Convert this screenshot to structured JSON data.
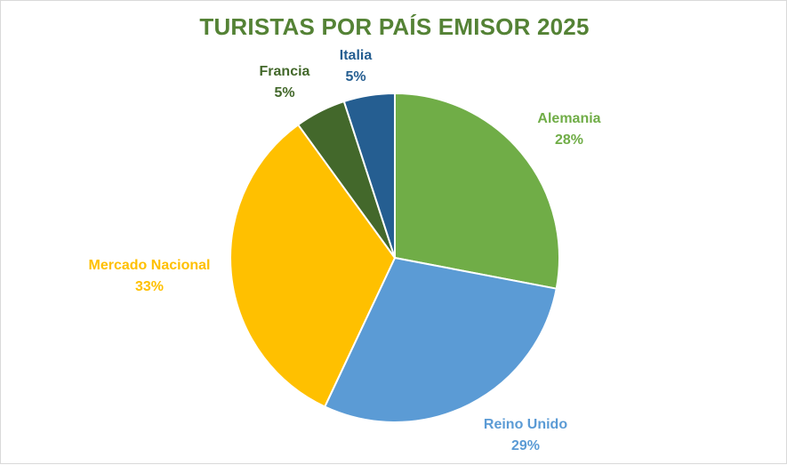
{
  "chart_data": {
    "type": "pie",
    "title": "TURISTAS POR PAÍS EMISOR 2025",
    "title_color": "#548235",
    "start_angle_deg": 0,
    "direction": "clockwise",
    "slices": [
      {
        "label": "Alemania",
        "value": 28,
        "display": "28%",
        "color": "#70AD47"
      },
      {
        "label": "Reino Unido",
        "value": 29,
        "display": "29%",
        "color": "#5B9BD5"
      },
      {
        "label": "Mercado Nacional",
        "value": 33,
        "display": "33%",
        "color": "#FFC000"
      },
      {
        "label": "Francia",
        "value": 5,
        "display": "5%",
        "color": "#43682B"
      },
      {
        "label": "Italia",
        "value": 5,
        "display": "5%",
        "color": "#255E91"
      }
    ]
  }
}
